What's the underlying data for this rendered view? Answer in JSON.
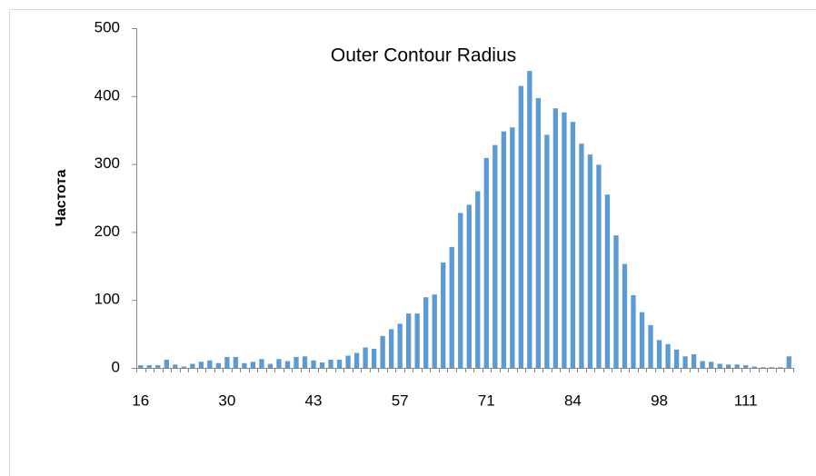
{
  "chart_data": {
    "type": "bar",
    "title": "Outer  Contour Radius",
    "y_label": "Частота",
    "categories": [
      16,
      null,
      null,
      null,
      null,
      null,
      null,
      null,
      null,
      null,
      30,
      null,
      null,
      null,
      null,
      null,
      null,
      null,
      null,
      null,
      43,
      null,
      null,
      null,
      null,
      null,
      null,
      null,
      null,
      null,
      57,
      null,
      null,
      null,
      null,
      null,
      null,
      null,
      null,
      null,
      71,
      null,
      null,
      null,
      null,
      null,
      null,
      null,
      null,
      null,
      84,
      null,
      null,
      null,
      null,
      null,
      null,
      null,
      null,
      null,
      98,
      null,
      null,
      null,
      null,
      null,
      null,
      null,
      null,
      null,
      111,
      null,
      null,
      null,
      null,
      null
    ],
    "values": [
      4,
      4,
      4,
      12,
      5,
      2,
      6,
      9,
      11,
      7,
      16,
      16,
      7,
      9,
      13,
      6,
      13,
      10,
      16,
      17,
      11,
      8,
      12,
      12,
      18,
      22,
      30,
      28,
      47,
      57,
      65,
      80,
      80,
      104,
      108,
      155,
      178,
      228,
      240,
      260,
      309,
      328,
      348,
      354,
      415,
      437,
      397,
      343,
      382,
      376,
      362,
      330,
      314,
      299,
      255,
      195,
      153,
      107,
      82,
      63,
      41,
      35,
      27,
      17,
      20,
      10,
      9,
      6,
      5,
      5,
      4,
      2,
      1,
      1,
      1,
      17
    ],
    "color": "#5b9bd5",
    "ylim": [
      0,
      500
    ],
    "yticks": [
      0,
      100,
      200,
      300,
      400,
      500
    ],
    "grid": false
  }
}
